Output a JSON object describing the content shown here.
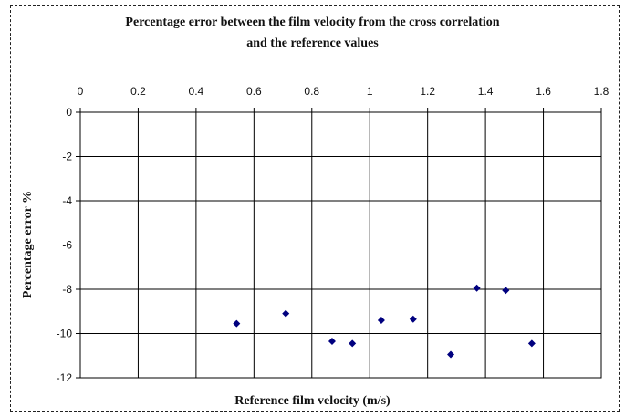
{
  "chart_data": {
    "type": "scatter",
    "title_line1": "Percentage error between the film velocity from the cross correlation",
    "title_line2": "and the reference values",
    "xlabel": "Reference film velocity (m/s)",
    "ylabel": "Percentage error  %",
    "xlim": [
      0,
      1.8
    ],
    "ylim": [
      -12,
      0
    ],
    "x_ticks": [
      "0",
      "0.2",
      "0.4",
      "0.6",
      "0.8",
      "1",
      "1.2",
      "1.4",
      "1.6",
      "1.8"
    ],
    "y_ticks": [
      "0",
      "-2",
      "-4",
      "-6",
      "-8",
      "-10",
      "-12"
    ],
    "x_axis_position": "top",
    "grid": true,
    "marker_color": "#00007f",
    "points": [
      {
        "x": 0.54,
        "y": -9.55
      },
      {
        "x": 0.71,
        "y": -9.1
      },
      {
        "x": 0.87,
        "y": -10.35
      },
      {
        "x": 0.94,
        "y": -10.45
      },
      {
        "x": 1.04,
        "y": -9.4
      },
      {
        "x": 1.15,
        "y": -9.35
      },
      {
        "x": 1.28,
        "y": -10.95
      },
      {
        "x": 1.37,
        "y": -7.95
      },
      {
        "x": 1.47,
        "y": -8.05
      },
      {
        "x": 1.56,
        "y": -10.45
      }
    ]
  }
}
